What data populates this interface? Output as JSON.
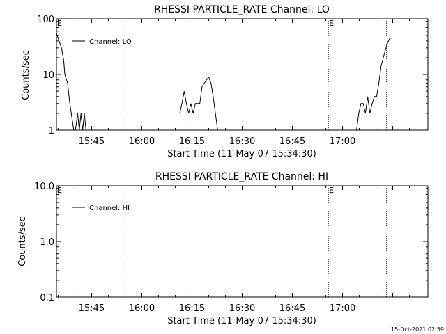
{
  "chart_data": [
    {
      "type": "line",
      "title": "RHESSI PARTICLE_RATE Channel: LO",
      "xlabel": "Start Time (11-May-07 15:34:30)",
      "ylabel": "Counts/sec",
      "yscale": "log",
      "ylim": [
        1,
        100
      ],
      "xlim_minutes_after_15_34_30": [
        0,
        111
      ],
      "x_ticks": [
        "15:45",
        "16:00",
        "16:15",
        "16:30",
        "16:45",
        "17:00"
      ],
      "y_ticks": [
        "1",
        "10",
        "100"
      ],
      "legend": {
        "placement": "top-left",
        "entries": [
          "Channel: LO"
        ]
      },
      "markers": [
        {
          "time": "15:55:00",
          "style": "dotted"
        },
        {
          "time": "16:55:45",
          "style": "dotted",
          "label": "E"
        },
        {
          "time": "17:13:10",
          "style": "dotted"
        }
      ],
      "start_marker_label": "E",
      "series": [
        {
          "name": "Channel: LO",
          "segments": [
            [
              [
                "15:34:30",
                55
              ],
              [
                "15:35:10",
                42
              ],
              [
                "15:36:00",
                30
              ],
              [
                "15:36:40",
                18
              ],
              [
                "15:37:00",
                10
              ],
              [
                "15:37:50",
                7
              ],
              [
                "15:38:30",
                3
              ],
              [
                "15:39:40",
                1
              ],
              [
                "15:40:10",
                1
              ],
              [
                "15:40:50",
                2
              ],
              [
                "15:41:20",
                1
              ],
              [
                "15:41:50",
                2
              ],
              [
                "15:42:20",
                1
              ],
              [
                "15:42:50",
                2
              ],
              [
                "15:43:20",
                1
              ]
            ],
            [
              [
                "16:11:20",
                2
              ],
              [
                "16:12:00",
                3
              ],
              [
                "16:12:40",
                5
              ],
              [
                "16:13:20",
                3
              ],
              [
                "16:14:00",
                2
              ],
              [
                "16:14:40",
                3
              ],
              [
                "16:15:20",
                2
              ],
              [
                "16:16:00",
                3
              ],
              [
                "16:16:40",
                3
              ],
              [
                "16:17:20",
                3
              ],
              [
                "16:18:00",
                6
              ],
              [
                "16:18:40",
                7
              ],
              [
                "16:19:20",
                8
              ],
              [
                "16:20:00",
                9
              ],
              [
                "16:20:40",
                7
              ],
              [
                "16:21:20",
                4
              ],
              [
                "16:22:00",
                2
              ],
              [
                "16:22:40",
                1
              ]
            ],
            [
              [
                "17:04:10",
                1
              ],
              [
                "17:04:50",
                2
              ],
              [
                "17:05:30",
                3
              ],
              [
                "17:06:10",
                3
              ],
              [
                "17:06:50",
                2
              ],
              [
                "17:07:30",
                4
              ],
              [
                "17:08:10",
                2
              ],
              [
                "17:08:50",
                3
              ],
              [
                "17:09:30",
                4
              ],
              [
                "17:10:10",
                4
              ],
              [
                "17:10:50",
                7
              ],
              [
                "17:11:30",
                14
              ],
              [
                "17:12:10",
                20
              ],
              [
                "17:12:50",
                28
              ],
              [
                "17:13:30",
                38
              ],
              [
                "17:14:10",
                45
              ],
              [
                "17:14:40",
                45
              ]
            ]
          ]
        }
      ]
    },
    {
      "type": "line",
      "title": "RHESSI PARTICLE_RATE Channel: HI",
      "xlabel": "Start Time (11-May-07 15:34:30)",
      "ylabel": "Counts/sec",
      "yscale": "log",
      "ylim": [
        0.1,
        10
      ],
      "xlim_minutes_after_15_34_30": [
        0,
        111
      ],
      "x_ticks": [
        "15:45",
        "16:00",
        "16:15",
        "16:30",
        "16:45",
        "17:00"
      ],
      "y_ticks": [
        "0.1",
        "1.0",
        "10.0"
      ],
      "legend": {
        "placement": "top-left",
        "entries": [
          "Channel: HI"
        ]
      },
      "markers": [
        {
          "time": "15:55:00",
          "style": "dotted"
        },
        {
          "time": "16:55:45",
          "style": "dotted",
          "label": "E"
        },
        {
          "time": "17:13:10",
          "style": "dotted"
        }
      ],
      "start_marker_label": "E",
      "series": [
        {
          "name": "Channel: HI",
          "segments": []
        }
      ]
    }
  ],
  "footer": {
    "timestamp": "15-Oct-2021 02:59"
  }
}
